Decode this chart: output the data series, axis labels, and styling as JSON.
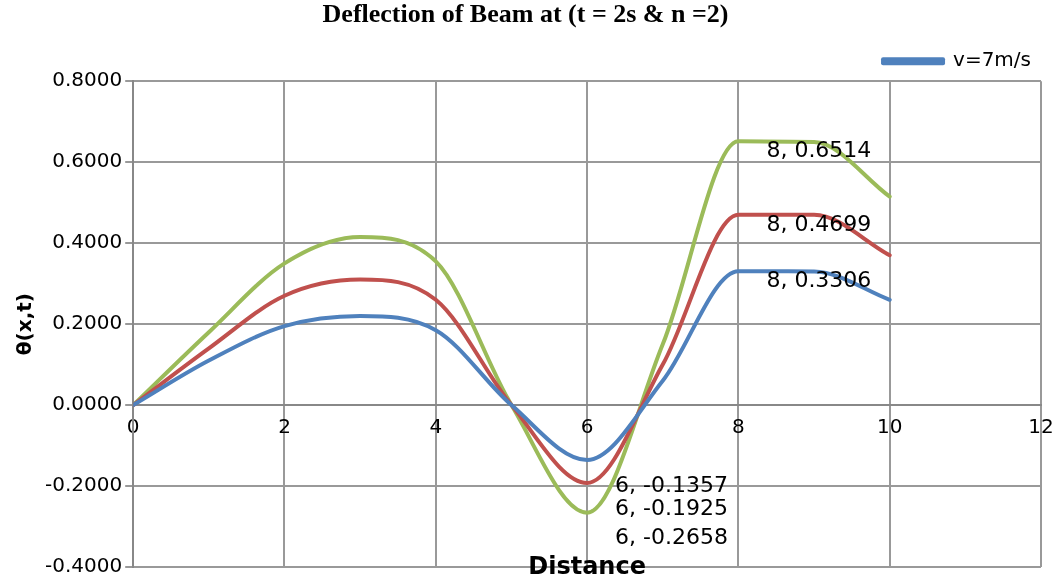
{
  "chart_data": {
    "type": "line",
    "title": "Deflection of Beam at (t = 2s & n =2)",
    "xlabel": "Distance",
    "ylabel": "θ(x,t)",
    "x": [
      0,
      1,
      2,
      3,
      4,
      5,
      6,
      7,
      8,
      9,
      10
    ],
    "series": [
      {
        "name": "v=7m/s",
        "color": "#4f81bd",
        "values": [
          0,
          0.11,
          0.195,
          0.22,
          0.185,
          0,
          -0.1357,
          0.06,
          0.3306,
          0.33,
          0.26
        ],
        "value_labels": [
          null,
          null,
          null,
          null,
          null,
          null,
          "6, -0.1357",
          null,
          "8, 0.3306",
          null,
          null
        ]
      },
      {
        "color": "#c0504d",
        "values": [
          0,
          0.14,
          0.27,
          0.31,
          0.26,
          0,
          -0.1925,
          0.1,
          0.4699,
          0.47,
          0.37
        ],
        "value_labels": [
          null,
          null,
          null,
          null,
          null,
          null,
          "6, -0.1925",
          null,
          "8, 0.4699",
          null,
          null
        ]
      },
      {
        "color": "#9bbb59",
        "values": [
          0,
          0.18,
          0.35,
          0.415,
          0.355,
          0,
          -0.2658,
          0.15,
          0.6514,
          0.65,
          0.515
        ],
        "value_labels": [
          null,
          null,
          null,
          null,
          null,
          null,
          "6, -0.2658",
          null,
          "8, 0.6514",
          null,
          null
        ]
      }
    ],
    "xlim": [
      0,
      12
    ],
    "xticks": [
      0,
      2,
      4,
      6,
      8,
      10,
      12
    ],
    "ylim": [
      -0.4,
      0.8
    ],
    "yticks": [
      {
        "value": -0.4,
        "label": "-0.4000"
      },
      {
        "value": -0.2,
        "label": "-0.2000"
      },
      {
        "value": 0,
        "label": "0.0000"
      },
      {
        "value": 0.2,
        "label": "0.2000"
      },
      {
        "value": 0.4,
        "label": "0.4000"
      },
      {
        "value": 0.6,
        "label": "0.6000"
      },
      {
        "value": 0.8,
        "label": "0.8000"
      }
    ],
    "grid": true,
    "legend": "top right",
    "marker": "none",
    "line_style": "solid"
  }
}
